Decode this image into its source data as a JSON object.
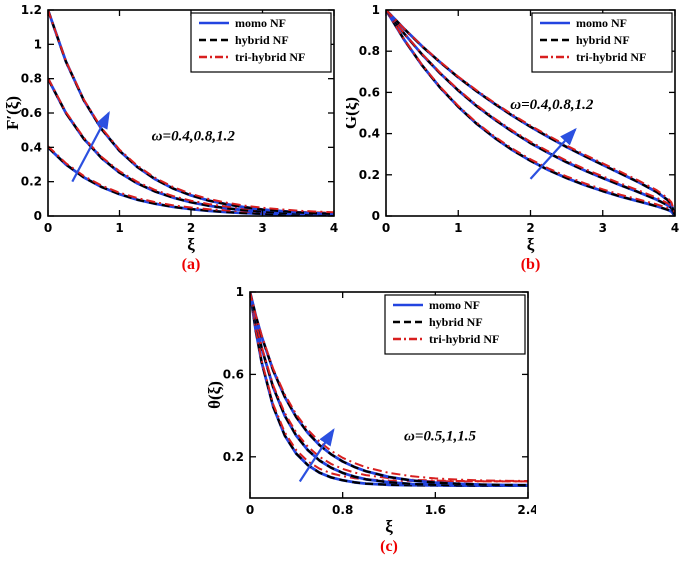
{
  "page": {
    "bg": "#ffffff"
  },
  "arrow_color": "#2b50e0",
  "legend": {
    "items": [
      {
        "label": "momo NF",
        "color": "#2244e0",
        "style": "solid"
      },
      {
        "label": "hybrid NF",
        "color": "#000000",
        "style": "dashed"
      },
      {
        "label": "tri-hybrid NF",
        "color": "#d81f1f",
        "style": "dashdot"
      }
    ]
  },
  "chart_data": [
    {
      "id": "a",
      "type": "line",
      "caption": "(a)",
      "xlabel": "ξ",
      "ylabel": "F′(ξ)",
      "xlim": [
        0,
        4
      ],
      "ylim": [
        0,
        1.2
      ],
      "xticks": [
        0,
        1,
        2,
        3,
        4
      ],
      "xtick_labels": [
        "0",
        "1",
        "2",
        "3",
        "4"
      ],
      "yticks": [
        0,
        0.2,
        0.4,
        0.6,
        0.8,
        1,
        1.2
      ],
      "ytick_labels": [
        "0",
        "0.2",
        "0.4",
        "0.6",
        "0.8",
        "1",
        "1.2"
      ],
      "annotation": {
        "text": "ω=0.4,0.8,1.2",
        "x": 1.45,
        "y": 0.44
      },
      "arrow": {
        "x1": 0.34,
        "y1": 0.2,
        "x2": 0.85,
        "y2": 0.6
      },
      "tri_offset": 0.01,
      "x": [
        0,
        0.25,
        0.5,
        0.75,
        1,
        1.25,
        1.5,
        1.75,
        2,
        2.25,
        2.5,
        2.75,
        3,
        3.25,
        3.5,
        3.75,
        4
      ],
      "series": [
        {
          "name": "ω=0.4",
          "values": [
            0.4,
            0.3,
            0.225,
            0.169,
            0.127,
            0.095,
            0.071,
            0.053,
            0.04,
            0.03,
            0.023,
            0.017,
            0.013,
            0.01,
            0.007,
            0.006,
            0.004
          ]
        },
        {
          "name": "ω=0.8",
          "values": [
            0.8,
            0.6,
            0.45,
            0.337,
            0.253,
            0.19,
            0.142,
            0.107,
            0.08,
            0.06,
            0.045,
            0.034,
            0.026,
            0.019,
            0.014,
            0.011,
            0.008
          ]
        },
        {
          "name": "ω=1.2",
          "values": [
            1.2,
            0.9,
            0.674,
            0.506,
            0.38,
            0.285,
            0.214,
            0.16,
            0.12,
            0.09,
            0.068,
            0.051,
            0.038,
            0.029,
            0.021,
            0.016,
            0.012
          ]
        }
      ]
    },
    {
      "id": "b",
      "type": "line",
      "caption": "(b)",
      "xlabel": "ξ",
      "ylabel": "G(ξ)",
      "xlim": [
        0,
        4
      ],
      "ylim": [
        0,
        1
      ],
      "xticks": [
        0,
        1,
        2,
        3,
        4
      ],
      "xtick_labels": [
        "0",
        "1",
        "2",
        "3",
        "4"
      ],
      "yticks": [
        0,
        0.2,
        0.4,
        0.6,
        0.8,
        1
      ],
      "ytick_labels": [
        "0",
        "0.2",
        "0.4",
        "0.6",
        "0.8",
        "1"
      ],
      "annotation": {
        "text": "ω=0.4,0.8,1.2",
        "x": 1.72,
        "y": 0.52
      },
      "arrow": {
        "x1": 2.0,
        "y1": 0.18,
        "x2": 2.62,
        "y2": 0.42
      },
      "tri_offset": 0.01,
      "x": [
        0,
        0.25,
        0.5,
        0.75,
        1,
        1.25,
        1.5,
        1.75,
        2,
        2.25,
        2.5,
        2.75,
        3,
        3.25,
        3.5,
        3.75,
        3.9,
        3.95,
        4
      ],
      "series": [
        {
          "name": "ω=0.4",
          "values": [
            1,
            0.856,
            0.731,
            0.623,
            0.53,
            0.449,
            0.38,
            0.32,
            0.268,
            0.223,
            0.184,
            0.15,
            0.121,
            0.094,
            0.071,
            0.047,
            0.03,
            0.022,
            0
          ]
        },
        {
          "name": "ω=0.8",
          "values": [
            1,
            0.886,
            0.784,
            0.692,
            0.609,
            0.535,
            0.469,
            0.409,
            0.354,
            0.306,
            0.261,
            0.221,
            0.184,
            0.149,
            0.115,
            0.079,
            0.052,
            0.039,
            0
          ]
        },
        {
          "name": "ω=1.2",
          "values": [
            1,
            0.909,
            0.824,
            0.746,
            0.673,
            0.607,
            0.545,
            0.487,
            0.433,
            0.383,
            0.335,
            0.291,
            0.248,
            0.206,
            0.163,
            0.116,
            0.077,
            0.057,
            0
          ]
        }
      ]
    },
    {
      "id": "c",
      "type": "line",
      "caption": "(c)",
      "xlabel": "ξ",
      "ylabel": "θ(ξ)",
      "xlim": [
        0,
        2.4
      ],
      "ylim": [
        0,
        1
      ],
      "xticks": [
        0,
        0.8,
        1.6,
        2.4
      ],
      "xtick_labels": [
        "0",
        "0.8",
        "1.6",
        "2.4"
      ],
      "yticks": [
        0.2,
        0.6,
        1
      ],
      "ytick_labels": [
        "0.2",
        "0.6",
        "1"
      ],
      "annotation": {
        "text": "ω=0.5,1,1.5",
        "x": 1.33,
        "y": 0.28
      },
      "arrow": {
        "x1": 0.43,
        "y1": 0.08,
        "x2": 0.72,
        "y2": 0.33
      },
      "tri_offset": 0.022,
      "x": [
        0,
        0.05,
        0.1,
        0.2,
        0.3,
        0.4,
        0.5,
        0.6,
        0.7,
        0.8,
        0.9,
        1,
        1.2,
        1.4,
        1.6,
        1.8,
        2,
        2.2,
        2.4
      ],
      "series": [
        {
          "name": "ω=0.5",
          "values": [
            1,
            0.811,
            0.66,
            0.443,
            0.303,
            0.215,
            0.159,
            0.123,
            0.1,
            0.086,
            0.076,
            0.07,
            0.064,
            0.062,
            0.061,
            0.06,
            0.06,
            0.06,
            0.06
          ]
        },
        {
          "name": "ω=1",
          "values": [
            1,
            0.853,
            0.729,
            0.537,
            0.399,
            0.302,
            0.232,
            0.182,
            0.147,
            0.122,
            0.104,
            0.091,
            0.076,
            0.068,
            0.064,
            0.062,
            0.061,
            0.061,
            0.06
          ]
        },
        {
          "name": "ω=1.5",
          "values": [
            1,
            0.885,
            0.785,
            0.619,
            0.491,
            0.392,
            0.316,
            0.257,
            0.212,
            0.177,
            0.151,
            0.13,
            0.102,
            0.085,
            0.075,
            0.069,
            0.065,
            0.063,
            0.062
          ]
        }
      ]
    }
  ]
}
